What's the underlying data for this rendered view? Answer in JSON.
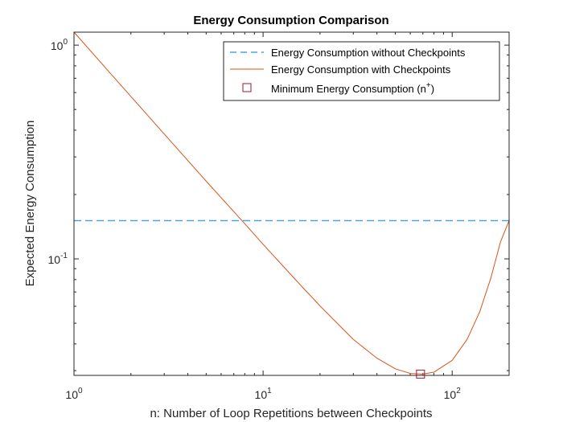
{
  "chart_data": {
    "type": "line",
    "title": "Energy Consumption Comparison",
    "xlabel": "n: Number of Loop Repetitions between Checkpoints",
    "ylabel": "Expected Energy Consumption",
    "x_scale": "log",
    "y_scale": "log",
    "xlim": [
      1,
      200
    ],
    "ylim": [
      0.0285,
      1.15
    ],
    "x_ticks": [
      {
        "value": 1,
        "base": "10",
        "exp": "0"
      },
      {
        "value": 10,
        "base": "10",
        "exp": "1"
      },
      {
        "value": 100,
        "base": "10",
        "exp": "2"
      }
    ],
    "y_ticks": [
      {
        "value": 0.1,
        "base": "10",
        "exp": "-1"
      },
      {
        "value": 1,
        "base": "10",
        "exp": "0"
      }
    ],
    "grid": false,
    "legend_position": "top-right",
    "series": [
      {
        "name": "Energy Consumption without Checkpoints",
        "style": "dashed",
        "color": "#4DA6DB",
        "x": [
          1,
          200
        ],
        "y": [
          0.151,
          0.151
        ]
      },
      {
        "name": "Energy Consumption with Checkpoints",
        "style": "solid",
        "color": "#D95319",
        "x": [
          1,
          1.5,
          2,
          3,
          5,
          8,
          10,
          15,
          20,
          30,
          40,
          50,
          60,
          70,
          80,
          100,
          120,
          140,
          160,
          180,
          200
        ],
        "y": [
          1.15,
          0.766,
          0.575,
          0.384,
          0.231,
          0.146,
          0.117,
          0.0791,
          0.0602,
          0.042,
          0.0343,
          0.0306,
          0.0291,
          0.0289,
          0.0295,
          0.0335,
          0.042,
          0.0567,
          0.0812,
          0.1199,
          0.151
        ]
      },
      {
        "name": "Minimum Energy Consumption (n+)",
        "style": "marker",
        "marker": "square",
        "color": "#A2142F",
        "x": [
          68
        ],
        "y": [
          0.0289
        ]
      }
    ],
    "legend_entries": [
      {
        "label": "Energy Consumption without Checkpoints"
      },
      {
        "label": "Energy Consumption with Checkpoints"
      },
      {
        "label_main": "Minimum Energy Consumption (n",
        "label_sup": "+",
        "label_end": ")"
      }
    ]
  }
}
